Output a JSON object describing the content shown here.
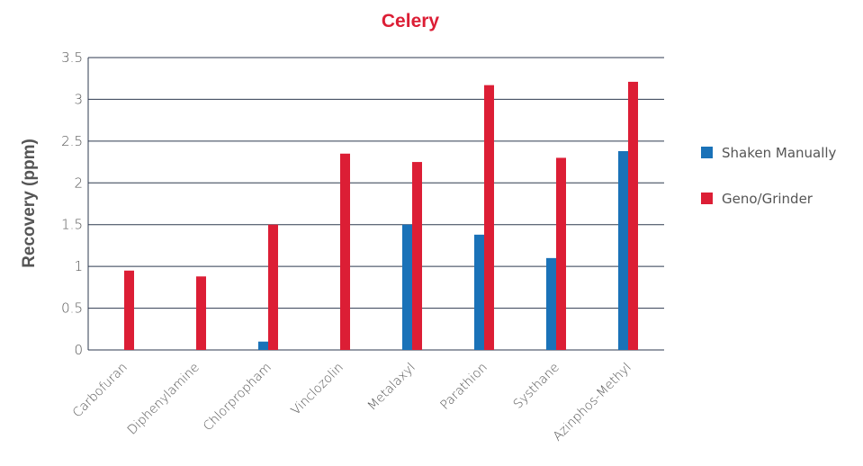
{
  "chart_data": {
    "type": "bar",
    "title": "Celery",
    "xlabel": "",
    "ylabel": "Recovery (ppm)",
    "ylim": [
      0,
      3.5
    ],
    "yticks": [
      "0",
      "0.5",
      "1",
      "1.5",
      "2",
      "2.5",
      "3",
      "3.5"
    ],
    "categories": [
      "Carbofuran",
      "Diphenylamine",
      "Chlorpropham",
      "Vinclozolin",
      "Metalaxyl",
      "Parathion",
      "Systhane",
      "Azinphos-Methyl"
    ],
    "series": [
      {
        "name": "Shaken Manually",
        "color": "#1a72b8",
        "values": [
          0,
          0,
          0.1,
          0,
          1.5,
          1.38,
          1.1,
          2.38
        ]
      },
      {
        "name": "Geno/Grinder",
        "color": "#dc1e35",
        "values": [
          0.95,
          0.88,
          1.5,
          2.35,
          2.25,
          3.17,
          2.3,
          3.21
        ]
      }
    ],
    "grid": true,
    "legend_position": "right",
    "title_color": "#dc1e35",
    "axis_color": "#2e3a4f"
  }
}
